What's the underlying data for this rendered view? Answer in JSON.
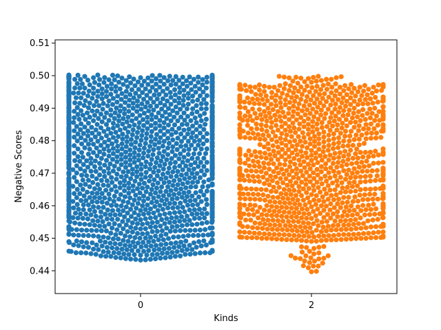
{
  "chart_data": {
    "type": "scatter",
    "subtype": "swarm",
    "title": "",
    "xlabel": "Kinds",
    "ylabel": "Negative Scores",
    "categories": [
      "0",
      "2"
    ],
    "ylim": [
      0.433,
      0.511
    ],
    "yticks": [
      "0.44",
      "0.45",
      "0.46",
      "0.47",
      "0.48",
      "0.49",
      "0.50",
      "0.51"
    ],
    "grid": false,
    "legend": "none",
    "series": [
      {
        "category": "0",
        "color": "#1f77b4",
        "point_count": 1500,
        "range": [
          0.4433,
          0.5002
        ],
        "distribution": "dense across full range, widest near bottom"
      },
      {
        "category": "2",
        "color": "#ff7f0e",
        "point_count": 1100,
        "range": [
          0.4397,
          0.4998
        ],
        "distribution": "dense 0.449-0.497, sparse tail down to 0.4397"
      }
    ]
  }
}
